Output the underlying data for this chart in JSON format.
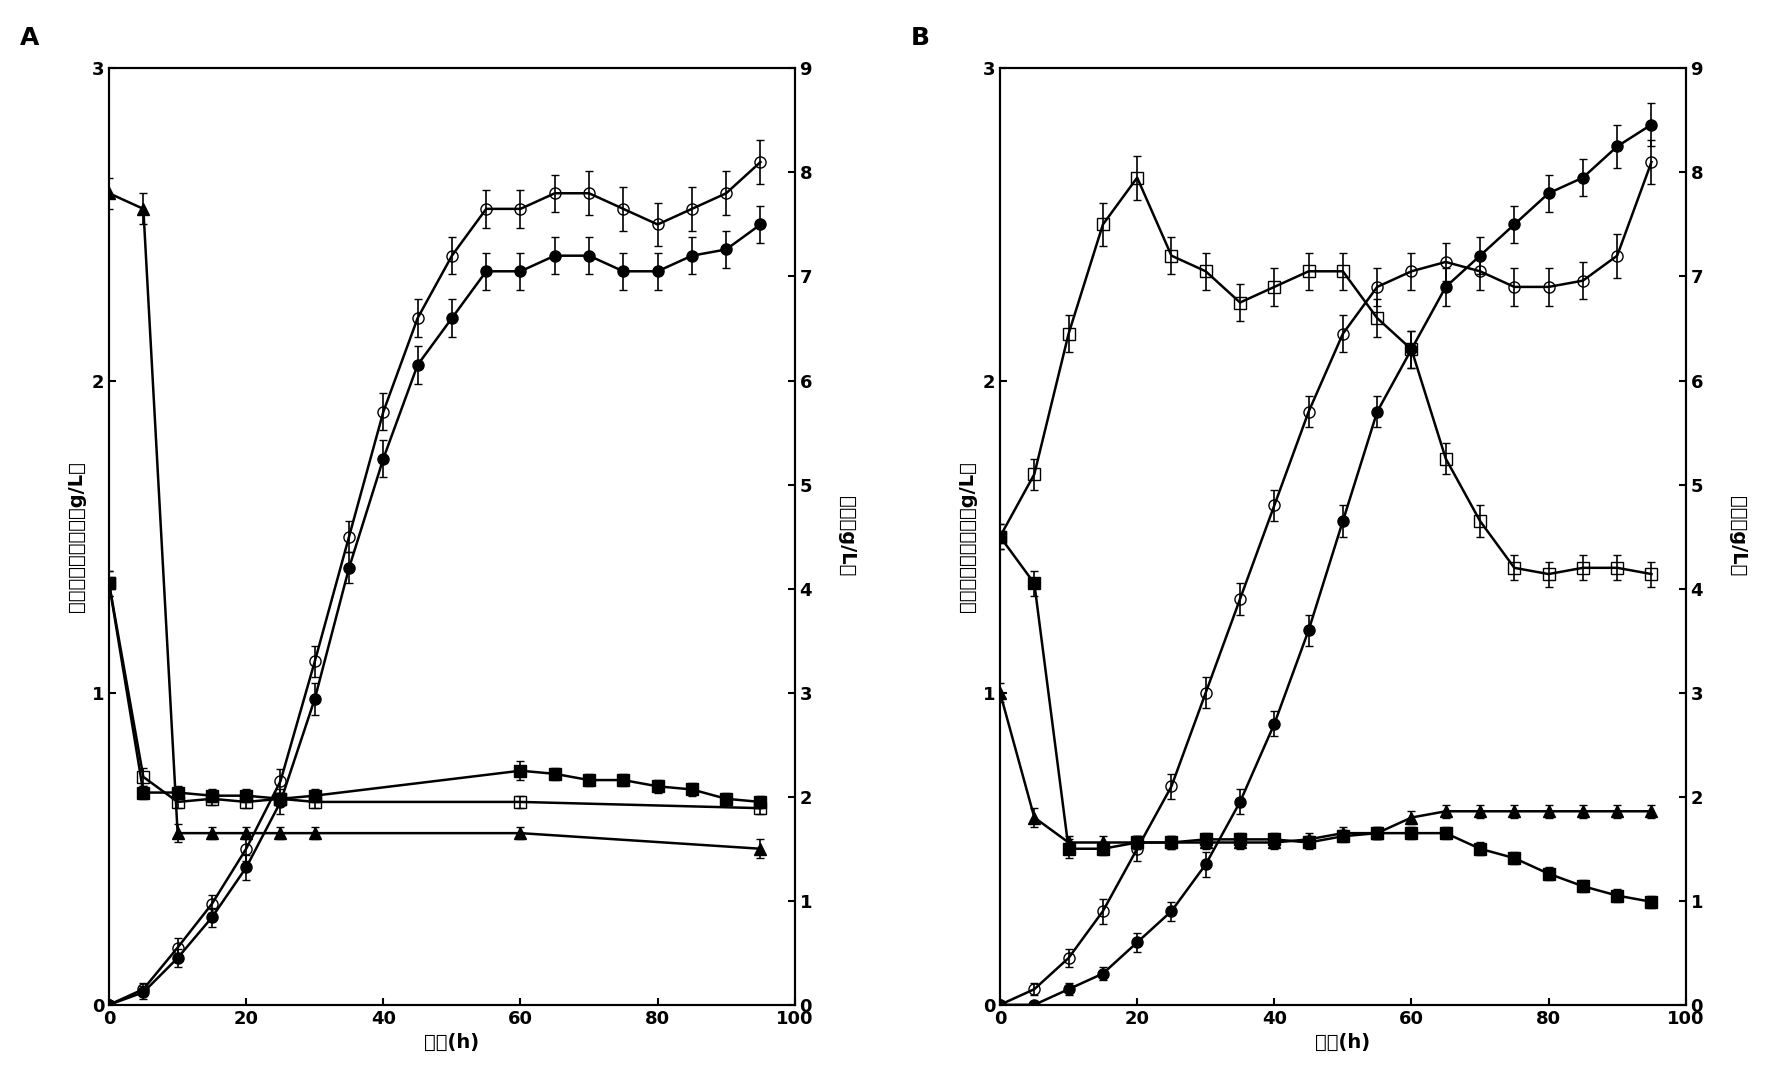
{
  "panel_A": {
    "series": {
      "triangle_filled": {
        "x": [
          0,
          5,
          10,
          15,
          20,
          25,
          30,
          60,
          95
        ],
        "y": [
          2.6,
          2.55,
          0.55,
          0.55,
          0.55,
          0.55,
          0.55,
          0.55,
          0.5
        ],
        "yerr": [
          0.05,
          0.05,
          0.03,
          0.02,
          0.02,
          0.02,
          0.02,
          0.02,
          0.03
        ],
        "marker": "^",
        "fillstyle": "full",
        "axis": "left"
      },
      "square_open": {
        "x": [
          0,
          5,
          10,
          15,
          20,
          25,
          30,
          60,
          95
        ],
        "y": [
          1.35,
          0.73,
          0.65,
          0.66,
          0.65,
          0.66,
          0.65,
          0.65,
          0.63
        ],
        "yerr": [
          0.04,
          0.03,
          0.02,
          0.02,
          0.02,
          0.02,
          0.02,
          0.02,
          0.02
        ],
        "marker": "s",
        "fillstyle": "none",
        "axis": "left"
      },
      "square_filled": {
        "x": [
          0,
          5,
          10,
          15,
          20,
          25,
          30,
          60,
          65,
          70,
          75,
          80,
          85,
          90,
          95
        ],
        "y": [
          1.35,
          0.68,
          0.68,
          0.67,
          0.67,
          0.66,
          0.67,
          0.75,
          0.74,
          0.72,
          0.72,
          0.7,
          0.69,
          0.66,
          0.65
        ],
        "yerr": [
          0.04,
          0.02,
          0.02,
          0.02,
          0.02,
          0.02,
          0.02,
          0.03,
          0.02,
          0.02,
          0.02,
          0.02,
          0.02,
          0.02,
          0.02
        ],
        "marker": "s",
        "fillstyle": "full",
        "axis": "left"
      },
      "circle_open": {
        "x": [
          0,
          5,
          10,
          15,
          20,
          25,
          30,
          35,
          40,
          45,
          50,
          55,
          60,
          65,
          70,
          75,
          80,
          85,
          90,
          95
        ],
        "y": [
          0.0,
          0.15,
          0.55,
          0.97,
          1.5,
          2.15,
          3.3,
          4.5,
          5.7,
          6.6,
          7.2,
          7.65,
          7.65,
          7.8,
          7.8,
          7.65,
          7.5,
          7.65,
          7.8,
          8.1
        ],
        "yerr": [
          0.0,
          0.06,
          0.09,
          0.09,
          0.12,
          0.12,
          0.15,
          0.15,
          0.18,
          0.18,
          0.18,
          0.18,
          0.18,
          0.18,
          0.21,
          0.21,
          0.21,
          0.21,
          0.21,
          0.21
        ],
        "marker": "o",
        "fillstyle": "none",
        "axis": "right"
      },
      "circle_filled": {
        "x": [
          0,
          5,
          10,
          15,
          20,
          25,
          30,
          35,
          40,
          45,
          50,
          55,
          60,
          65,
          70,
          75,
          80,
          85,
          90,
          95
        ],
        "y": [
          0.0,
          0.12,
          0.45,
          0.84,
          1.32,
          1.95,
          2.94,
          4.2,
          5.25,
          6.15,
          6.6,
          7.05,
          7.05,
          7.2,
          7.2,
          7.05,
          7.05,
          7.2,
          7.26,
          7.5
        ],
        "yerr": [
          0.0,
          0.06,
          0.09,
          0.09,
          0.12,
          0.12,
          0.15,
          0.15,
          0.18,
          0.18,
          0.18,
          0.18,
          0.18,
          0.18,
          0.18,
          0.18,
          0.18,
          0.18,
          0.18,
          0.18
        ],
        "marker": "o",
        "fillstyle": "full",
        "axis": "right"
      }
    },
    "xlim": [
      0,
      100
    ],
    "ylim_left": [
      0,
      3
    ],
    "ylim_right": [
      0,
      9
    ],
    "yticks_left": [
      0,
      1,
      2,
      3
    ],
    "yticks_right": [
      0,
      1,
      2,
      3,
      4,
      5,
      6,
      7,
      8,
      9
    ],
    "xticks": [
      0,
      20,
      40,
      60,
      80,
      100
    ],
    "xlabel": "时间(h)",
    "ylabel_left": "纤维二糖和葡萄糖（g/L）",
    "ylabel_right": "乙醇（g/L）",
    "panel_label": "A"
  },
  "panel_B": {
    "series": {
      "triangle_filled": {
        "x": [
          0,
          5,
          10,
          15,
          20,
          25,
          30,
          35,
          40,
          45,
          50,
          55,
          60,
          65,
          70,
          75,
          80,
          85,
          90,
          95
        ],
        "y": [
          1.0,
          0.6,
          0.52,
          0.52,
          0.52,
          0.52,
          0.52,
          0.52,
          0.52,
          0.53,
          0.55,
          0.55,
          0.6,
          0.62,
          0.62,
          0.62,
          0.62,
          0.62,
          0.62,
          0.62
        ],
        "yerr": [
          0.03,
          0.03,
          0.02,
          0.02,
          0.02,
          0.02,
          0.02,
          0.02,
          0.02,
          0.02,
          0.02,
          0.02,
          0.02,
          0.02,
          0.02,
          0.02,
          0.02,
          0.02,
          0.02,
          0.02
        ],
        "marker": "^",
        "fillstyle": "full",
        "axis": "left"
      },
      "square_open": {
        "x": [
          0,
          5,
          10,
          15,
          20,
          25,
          30,
          35,
          40,
          45,
          50,
          55,
          60,
          65,
          70,
          75,
          80,
          85,
          90,
          95
        ],
        "y": [
          1.5,
          1.7,
          2.15,
          2.5,
          2.65,
          2.4,
          2.35,
          2.25,
          2.3,
          2.35,
          2.35,
          2.2,
          2.1,
          1.75,
          1.55,
          1.4,
          1.38,
          1.4,
          1.4,
          1.38
        ],
        "yerr": [
          0.04,
          0.05,
          0.06,
          0.07,
          0.07,
          0.06,
          0.06,
          0.06,
          0.06,
          0.06,
          0.06,
          0.06,
          0.06,
          0.05,
          0.05,
          0.04,
          0.04,
          0.04,
          0.04,
          0.04
        ],
        "marker": "s",
        "fillstyle": "none",
        "axis": "left"
      },
      "square_filled": {
        "x": [
          0,
          5,
          10,
          15,
          20,
          25,
          30,
          35,
          40,
          45,
          50,
          55,
          60,
          65,
          70,
          75,
          80,
          85,
          90,
          95
        ],
        "y": [
          1.5,
          1.35,
          0.5,
          0.5,
          0.52,
          0.52,
          0.53,
          0.53,
          0.53,
          0.52,
          0.54,
          0.55,
          0.55,
          0.55,
          0.5,
          0.47,
          0.42,
          0.38,
          0.35,
          0.33
        ],
        "yerr": [
          0.04,
          0.04,
          0.03,
          0.02,
          0.02,
          0.02,
          0.02,
          0.02,
          0.02,
          0.02,
          0.02,
          0.02,
          0.02,
          0.02,
          0.02,
          0.02,
          0.02,
          0.02,
          0.02,
          0.02
        ],
        "marker": "s",
        "fillstyle": "full",
        "axis": "left"
      },
      "circle_open": {
        "x": [
          0,
          5,
          10,
          15,
          20,
          25,
          30,
          35,
          40,
          45,
          50,
          55,
          60,
          65,
          70,
          75,
          80,
          85,
          90,
          95
        ],
        "y": [
          0.0,
          0.15,
          0.45,
          0.9,
          1.5,
          2.1,
          3.0,
          3.9,
          4.8,
          5.7,
          6.45,
          6.9,
          7.05,
          7.14,
          7.05,
          6.9,
          6.9,
          6.96,
          7.2,
          8.1
        ],
        "yerr": [
          0.0,
          0.06,
          0.09,
          0.12,
          0.12,
          0.12,
          0.15,
          0.15,
          0.15,
          0.15,
          0.18,
          0.18,
          0.18,
          0.18,
          0.18,
          0.18,
          0.18,
          0.18,
          0.21,
          0.21
        ],
        "marker": "o",
        "fillstyle": "none",
        "axis": "right"
      },
      "circle_filled": {
        "x": [
          0,
          5,
          10,
          15,
          20,
          25,
          30,
          35,
          40,
          45,
          50,
          55,
          60,
          65,
          70,
          75,
          80,
          85,
          90,
          95
        ],
        "y": [
          0.0,
          0.0,
          0.15,
          0.3,
          0.6,
          0.9,
          1.35,
          1.95,
          2.7,
          3.6,
          4.65,
          5.7,
          6.3,
          6.9,
          7.2,
          7.5,
          7.8,
          7.95,
          8.25,
          8.46
        ],
        "yerr": [
          0.0,
          0.0,
          0.06,
          0.06,
          0.09,
          0.09,
          0.12,
          0.12,
          0.12,
          0.15,
          0.15,
          0.15,
          0.18,
          0.18,
          0.18,
          0.18,
          0.18,
          0.18,
          0.21,
          0.21
        ],
        "marker": "o",
        "fillstyle": "full",
        "axis": "right"
      }
    },
    "xlim": [
      0,
      100
    ],
    "ylim_left": [
      0,
      3
    ],
    "ylim_right": [
      0,
      9
    ],
    "yticks_left": [
      0,
      1,
      2,
      3
    ],
    "yticks_right": [
      0,
      1,
      2,
      3,
      4,
      5,
      6,
      7,
      8,
      9
    ],
    "xticks": [
      0,
      20,
      40,
      60,
      80,
      100
    ],
    "xlabel": "时间(h)",
    "ylabel_left": "纤维二糖和葡萄糖（g/L）",
    "ylabel_right": "乙醇（g/L）",
    "panel_label": "B"
  },
  "figure": {
    "bg_color": "white",
    "marker_size": 8,
    "linewidth": 1.8,
    "capsize": 3,
    "elinewidth": 1.2,
    "font_size_labels": 14,
    "font_size_ticks": 13,
    "font_size_panel": 18
  }
}
